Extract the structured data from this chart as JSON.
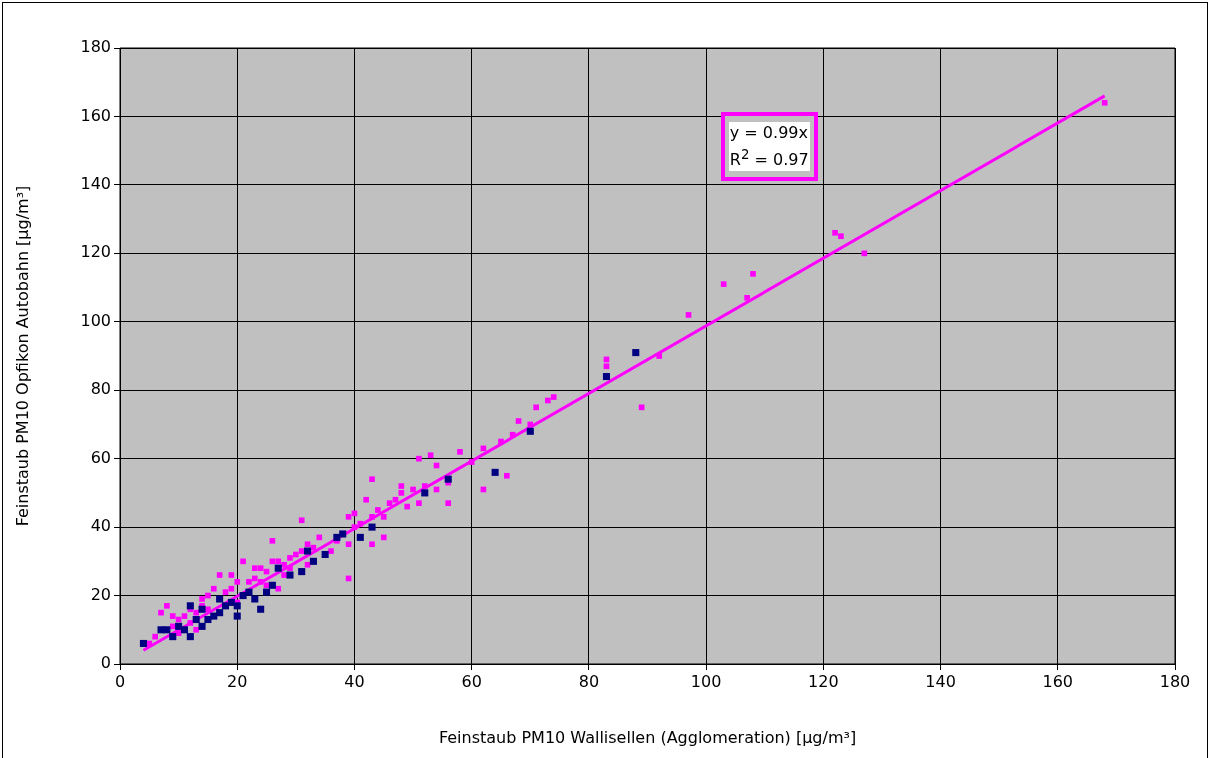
{
  "chart_data": {
    "type": "scatter",
    "xlabel": "Feinstaub PM10 Wallisellen (Agglomeration) [µg/m³]",
    "ylabel": "Feinstaub PM10 Opfikon Autobahn [µg/m³]",
    "xlim": [
      0,
      180
    ],
    "ylim": [
      0,
      180
    ],
    "xticks": [
      0,
      20,
      40,
      60,
      80,
      100,
      120,
      140,
      160,
      180
    ],
    "yticks": [
      0,
      20,
      40,
      60,
      80,
      100,
      120,
      140,
      160,
      180
    ],
    "grid": true,
    "marker": "square",
    "legend": false,
    "annotations": [
      "y = 0.99x",
      "R$^{2}$ = 0.97"
    ],
    "series": [
      {
        "color": "#ff00ff",
        "x": [
          168,
          122,
          123,
          127,
          108,
          103,
          107,
          97,
          92,
          89,
          83,
          83,
          74,
          73,
          71,
          70,
          68,
          67,
          66,
          65,
          62,
          62,
          60,
          58,
          56,
          56,
          54,
          54,
          53,
          52,
          51,
          51,
          50,
          49,
          48,
          48,
          47,
          46,
          45,
          45,
          44,
          43,
          43,
          43,
          42,
          41,
          40,
          40,
          39,
          39,
          39,
          37,
          36,
          34,
          32,
          31,
          31,
          30,
          29,
          28,
          27,
          27,
          26,
          26,
          25,
          24,
          24,
          23,
          22,
          21,
          20,
          19,
          19,
          18,
          17,
          16,
          15,
          14,
          14,
          13,
          12,
          11,
          10,
          9,
          9,
          8,
          7,
          6,
          5,
          10,
          12,
          13,
          15,
          20,
          23,
          25,
          28,
          29,
          32,
          33
        ],
        "values": [
          164,
          126,
          125,
          120,
          114,
          111,
          107,
          102,
          90,
          75,
          89,
          87,
          78,
          77,
          75,
          70,
          71,
          67,
          55,
          65,
          63,
          51,
          59,
          62,
          47,
          53,
          58,
          51,
          61,
          52,
          60,
          47,
          51,
          46,
          50,
          52,
          48,
          47,
          43,
          37,
          45,
          54,
          35,
          43,
          48,
          41,
          44,
          40,
          43,
          25,
          35,
          36,
          33,
          37,
          35,
          42,
          33,
          32,
          31,
          29,
          30,
          22,
          36,
          30,
          27,
          28,
          24,
          28,
          24,
          30,
          24,
          26,
          22,
          21,
          26,
          22,
          20,
          19,
          17,
          15,
          16,
          14,
          13,
          11,
          14,
          17,
          15,
          8,
          6,
          9,
          12,
          10,
          16,
          18,
          25,
          23,
          26,
          28,
          29,
          34
        ]
      },
      {
        "color": "#000080",
        "x": [
          4,
          7,
          8,
          9,
          10,
          11,
          12,
          12,
          13,
          14,
          14,
          15,
          16,
          17,
          17,
          18,
          19,
          20,
          20,
          21,
          22,
          23,
          24,
          25,
          26,
          27,
          29,
          31,
          32,
          33,
          35,
          37,
          38,
          41,
          43,
          52,
          56,
          64,
          70,
          83,
          88
        ],
        "values": [
          6,
          10,
          10,
          8,
          11,
          10,
          8,
          17,
          13,
          11,
          16,
          13,
          14,
          19,
          15,
          17,
          18,
          14,
          17,
          20,
          21,
          19,
          16,
          21,
          23,
          28,
          26,
          27,
          33,
          30,
          32,
          37,
          38,
          37,
          40,
          50,
          54,
          56,
          68,
          84,
          91
        ]
      },
      {
        "type": "line",
        "color": "#ff00ff",
        "marker": "none",
        "x": [
          4,
          168
        ],
        "values": [
          4,
          166
        ]
      }
    ]
  }
}
